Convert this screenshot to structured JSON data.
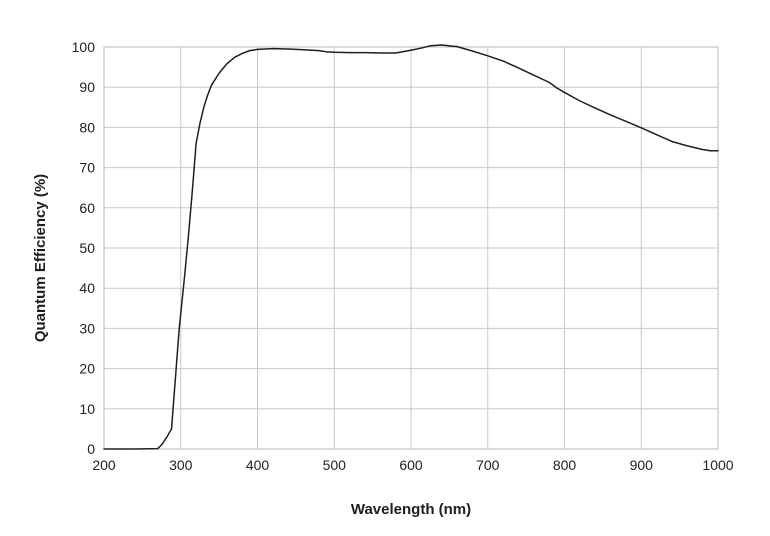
{
  "chart_data": {
    "type": "line",
    "title": "",
    "xlabel": "Wavelength (nm)",
    "ylabel": "Quantum Efficiency (%)",
    "xlim": [
      200,
      1000
    ],
    "ylim": [
      0,
      100
    ],
    "x_ticks": [
      200,
      300,
      400,
      500,
      600,
      700,
      800,
      900,
      1000
    ],
    "y_ticks": [
      0,
      10,
      20,
      30,
      40,
      50,
      60,
      70,
      80,
      90,
      100
    ],
    "x_tick_labels": [
      "200",
      "300",
      "400",
      "500",
      "600",
      "700",
      "800",
      "900",
      "1000"
    ],
    "y_tick_labels": [
      "0",
      "10",
      "20",
      "30",
      "40",
      "50",
      "60",
      "70",
      "80",
      "90",
      "100"
    ],
    "grid": true,
    "series": [
      {
        "name": "Quantum Efficiency",
        "color": "#1f1f1f",
        "x": [
          200,
          240,
          270,
          275,
          282,
          288,
          292,
          298,
          305,
          310,
          315,
          320,
          325,
          330,
          335,
          340,
          350,
          360,
          370,
          380,
          390,
          400,
          420,
          440,
          460,
          480,
          490,
          500,
          520,
          540,
          560,
          580,
          600,
          615,
          625,
          640,
          660,
          680,
          700,
          720,
          740,
          760,
          780,
          790,
          800,
          820,
          840,
          860,
          880,
          900,
          920,
          940,
          960,
          980,
          990,
          1000
        ],
        "y": [
          0,
          0,
          0.1,
          1,
          3,
          5,
          15,
          30,
          43,
          53,
          64,
          76,
          81,
          85,
          88,
          90.5,
          93.5,
          95.8,
          97.4,
          98.4,
          99.1,
          99.4,
          99.6,
          99.5,
          99.3,
          99.1,
          98.8,
          98.7,
          98.6,
          98.6,
          98.5,
          98.5,
          99.2,
          99.8,
          100.3,
          100.5,
          100.1,
          99,
          97.8,
          96.5,
          94.8,
          93,
          91.2,
          89.8,
          88.7,
          86.6,
          84.8,
          83.1,
          81.5,
          79.9,
          78.2,
          76.5,
          75.4,
          74.5,
          74.2,
          74.2
        ]
      }
    ]
  }
}
